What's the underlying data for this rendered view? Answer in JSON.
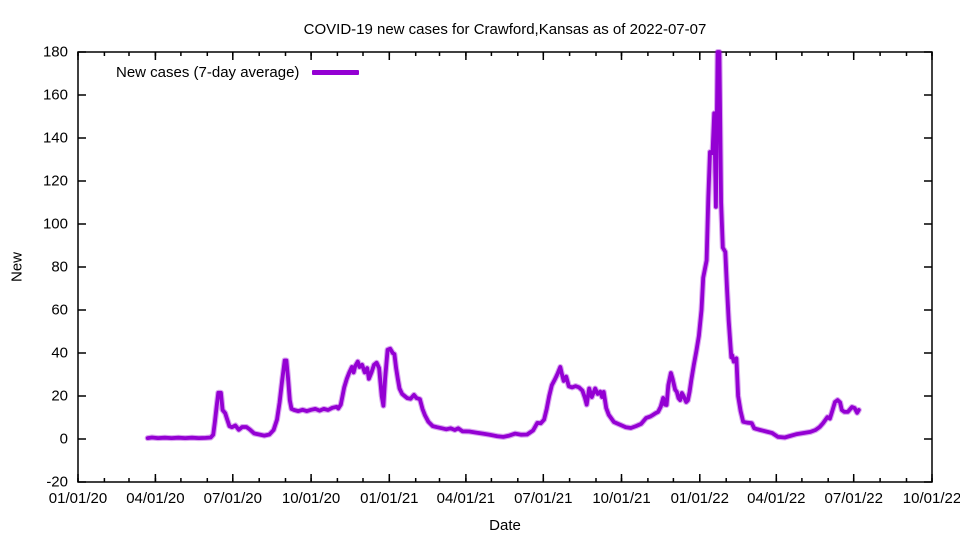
{
  "chart_data": {
    "type": "line",
    "title": "COVID-19 new cases for Crawford,Kansas as of 2022-07-07",
    "xlabel": "Date",
    "ylabel": "New",
    "grid": false,
    "legend": {
      "position": "top-left-inside",
      "entries": [
        "New cases (7-day average)"
      ]
    },
    "colors": {
      "line": "#9400d3",
      "frame": "#000000",
      "background": "#ffffff",
      "text": "#000000"
    },
    "x_axis": {
      "start_date": "2020-01-01",
      "end_date": "2022-10-01",
      "minor_ticks": "monthly",
      "ticks": [
        {
          "label": "01/01/20",
          "date": "2020-01-01"
        },
        {
          "label": "04/01/20",
          "date": "2020-04-01"
        },
        {
          "label": "07/01/20",
          "date": "2020-07-01"
        },
        {
          "label": "10/01/20",
          "date": "2020-10-01"
        },
        {
          "label": "01/01/21",
          "date": "2021-01-01"
        },
        {
          "label": "04/01/21",
          "date": "2021-04-01"
        },
        {
          "label": "07/01/21",
          "date": "2021-07-01"
        },
        {
          "label": "10/01/21",
          "date": "2021-10-01"
        },
        {
          "label": "01/01/22",
          "date": "2022-01-01"
        },
        {
          "label": "04/01/22",
          "date": "2022-04-01"
        },
        {
          "label": "07/01/22",
          "date": "2022-07-01"
        },
        {
          "label": "10/01/22",
          "date": "2022-10-01"
        }
      ]
    },
    "y_axis": {
      "min": -20,
      "max": 180,
      "tick_step": 20,
      "ticks": [
        -20,
        0,
        20,
        40,
        60,
        80,
        100,
        120,
        140,
        160,
        180
      ]
    },
    "series": [
      {
        "name": "New cases (7-day average)",
        "color": "#9400d3",
        "points": [
          [
            "2020-03-23",
            0.4
          ],
          [
            "2020-03-28",
            0.7
          ],
          [
            "2020-04-04",
            0.4
          ],
          [
            "2020-04-12",
            0.6
          ],
          [
            "2020-04-20",
            0.4
          ],
          [
            "2020-04-28",
            0.6
          ],
          [
            "2020-05-06",
            0.4
          ],
          [
            "2020-05-14",
            0.6
          ],
          [
            "2020-05-22",
            0.4
          ],
          [
            "2020-05-30",
            0.5
          ],
          [
            "2020-06-05",
            0.7
          ],
          [
            "2020-06-08",
            2
          ],
          [
            "2020-06-10",
            8
          ],
          [
            "2020-06-12",
            15
          ],
          [
            "2020-06-14",
            21.5
          ],
          [
            "2020-06-17",
            21.5
          ],
          [
            "2020-06-19",
            13.5
          ],
          [
            "2020-06-22",
            12
          ],
          [
            "2020-06-24",
            9.5
          ],
          [
            "2020-06-27",
            6
          ],
          [
            "2020-06-30",
            5.5
          ],
          [
            "2020-07-04",
            6.3
          ],
          [
            "2020-07-08",
            4.3
          ],
          [
            "2020-07-12",
            5.6
          ],
          [
            "2020-07-17",
            5.6
          ],
          [
            "2020-07-21",
            4.4
          ],
          [
            "2020-07-26",
            2.6
          ],
          [
            "2020-08-01",
            2.1
          ],
          [
            "2020-08-07",
            1.6
          ],
          [
            "2020-08-13",
            2.1
          ],
          [
            "2020-08-18",
            4.2
          ],
          [
            "2020-08-22",
            9
          ],
          [
            "2020-08-25",
            17
          ],
          [
            "2020-08-28",
            27
          ],
          [
            "2020-08-31",
            36.5
          ],
          [
            "2020-09-02",
            36.5
          ],
          [
            "2020-09-04",
            28
          ],
          [
            "2020-09-06",
            18
          ],
          [
            "2020-09-08",
            14
          ],
          [
            "2020-09-11",
            13.5
          ],
          [
            "2020-09-16",
            13
          ],
          [
            "2020-09-21",
            13.6
          ],
          [
            "2020-09-26",
            13
          ],
          [
            "2020-10-01",
            13.6
          ],
          [
            "2020-10-06",
            14
          ],
          [
            "2020-10-11",
            13.2
          ],
          [
            "2020-10-16",
            14
          ],
          [
            "2020-10-21",
            13.5
          ],
          [
            "2020-10-26",
            14.5
          ],
          [
            "2020-10-31",
            15
          ],
          [
            "2020-11-02",
            14.2
          ],
          [
            "2020-11-05",
            16
          ],
          [
            "2020-11-07",
            20
          ],
          [
            "2020-11-09",
            24
          ],
          [
            "2020-11-12",
            28
          ],
          [
            "2020-11-15",
            31
          ],
          [
            "2020-11-18",
            33.5
          ],
          [
            "2020-11-20",
            31
          ],
          [
            "2020-11-22",
            34
          ],
          [
            "2020-11-25",
            36
          ],
          [
            "2020-11-27",
            33.5
          ],
          [
            "2020-11-30",
            34.5
          ],
          [
            "2020-12-03",
            31
          ],
          [
            "2020-12-06",
            33
          ],
          [
            "2020-12-08",
            28
          ],
          [
            "2020-12-11",
            31
          ],
          [
            "2020-12-14",
            34.5
          ],
          [
            "2020-12-17",
            35.5
          ],
          [
            "2020-12-20",
            33
          ],
          [
            "2020-12-23",
            20
          ],
          [
            "2020-12-25",
            15.5
          ],
          [
            "2020-12-27",
            28
          ],
          [
            "2020-12-30",
            41.5
          ],
          [
            "2021-01-02",
            42
          ],
          [
            "2021-01-05",
            40
          ],
          [
            "2021-01-07",
            39.5
          ],
          [
            "2021-01-09",
            33
          ],
          [
            "2021-01-11",
            28
          ],
          [
            "2021-01-13",
            23.5
          ],
          [
            "2021-01-16",
            21
          ],
          [
            "2021-01-19",
            20
          ],
          [
            "2021-01-22",
            19
          ],
          [
            "2021-01-26",
            18.7
          ],
          [
            "2021-01-30",
            20.5
          ],
          [
            "2021-02-02",
            19
          ],
          [
            "2021-02-06",
            18.5
          ],
          [
            "2021-02-09",
            14
          ],
          [
            "2021-02-12",
            11
          ],
          [
            "2021-02-16",
            8
          ],
          [
            "2021-02-21",
            6
          ],
          [
            "2021-02-26",
            5.5
          ],
          [
            "2021-03-04",
            5
          ],
          [
            "2021-03-09",
            4.5
          ],
          [
            "2021-03-14",
            5
          ],
          [
            "2021-03-19",
            4.2
          ],
          [
            "2021-03-23",
            5
          ],
          [
            "2021-03-28",
            3.6
          ],
          [
            "2021-04-05",
            3.5
          ],
          [
            "2021-04-13",
            3
          ],
          [
            "2021-04-21",
            2.5
          ],
          [
            "2021-04-29",
            2
          ],
          [
            "2021-05-08",
            1.3
          ],
          [
            "2021-05-15",
            1
          ],
          [
            "2021-05-22",
            1.6
          ],
          [
            "2021-05-29",
            2.5
          ],
          [
            "2021-06-05",
            2
          ],
          [
            "2021-06-12",
            2.1
          ],
          [
            "2021-06-19",
            4
          ],
          [
            "2021-06-24",
            7.5
          ],
          [
            "2021-06-28",
            7.3
          ],
          [
            "2021-07-02",
            9
          ],
          [
            "2021-07-05",
            14
          ],
          [
            "2021-07-08",
            20
          ],
          [
            "2021-07-11",
            25
          ],
          [
            "2021-07-15",
            28
          ],
          [
            "2021-07-18",
            30.5
          ],
          [
            "2021-07-21",
            33.5
          ],
          [
            "2021-07-23",
            30
          ],
          [
            "2021-07-25",
            27
          ],
          [
            "2021-07-28",
            29
          ],
          [
            "2021-07-31",
            24.5
          ],
          [
            "2021-08-04",
            24
          ],
          [
            "2021-08-08",
            24.6
          ],
          [
            "2021-08-12",
            24
          ],
          [
            "2021-08-16",
            22.5
          ],
          [
            "2021-08-19",
            19
          ],
          [
            "2021-08-21",
            16
          ],
          [
            "2021-08-24",
            23.5
          ],
          [
            "2021-08-27",
            19.5
          ],
          [
            "2021-08-31",
            23.5
          ],
          [
            "2021-09-03",
            21
          ],
          [
            "2021-09-06",
            22
          ],
          [
            "2021-09-08",
            19.5
          ],
          [
            "2021-09-10",
            21.9
          ],
          [
            "2021-09-13",
            14.4
          ],
          [
            "2021-09-16",
            11.2
          ],
          [
            "2021-09-22",
            7.9
          ],
          [
            "2021-09-27",
            7
          ],
          [
            "2021-09-30",
            6.5
          ],
          [
            "2021-10-06",
            5.5
          ],
          [
            "2021-10-12",
            5.1
          ],
          [
            "2021-10-18",
            6
          ],
          [
            "2021-10-24",
            7
          ],
          [
            "2021-10-30",
            9.8
          ],
          [
            "2021-11-04",
            10.5
          ],
          [
            "2021-11-07",
            11.2
          ],
          [
            "2021-11-10",
            12
          ],
          [
            "2021-11-13",
            12.6
          ],
          [
            "2021-11-16",
            15
          ],
          [
            "2021-11-19",
            19.1
          ],
          [
            "2021-11-21",
            16
          ],
          [
            "2021-11-23",
            15.8
          ],
          [
            "2021-11-25",
            25
          ],
          [
            "2021-11-28",
            30.7
          ],
          [
            "2021-11-30",
            28
          ],
          [
            "2021-12-03",
            23
          ],
          [
            "2021-12-05",
            21.9
          ],
          [
            "2021-12-07",
            19
          ],
          [
            "2021-12-09",
            18.1
          ],
          [
            "2021-12-11",
            21.4
          ],
          [
            "2021-12-13",
            20
          ],
          [
            "2021-12-16",
            17.2
          ],
          [
            "2021-12-18",
            18
          ],
          [
            "2021-12-20",
            22
          ],
          [
            "2021-12-22",
            27.4
          ],
          [
            "2021-12-25",
            34.4
          ],
          [
            "2021-12-28",
            41
          ],
          [
            "2021-12-31",
            48
          ],
          [
            "2022-01-03",
            60
          ],
          [
            "2022-01-05",
            75
          ],
          [
            "2022-01-07",
            79
          ],
          [
            "2022-01-09",
            83
          ],
          [
            "2022-01-11",
            112
          ],
          [
            "2022-01-13",
            133.5
          ],
          [
            "2022-01-16",
            133
          ],
          [
            "2022-01-18",
            151.5
          ],
          [
            "2022-01-20",
            108
          ],
          [
            "2022-01-22",
            180
          ],
          [
            "2022-01-24",
            180
          ],
          [
            "2022-01-26",
            110
          ],
          [
            "2022-01-28",
            89
          ],
          [
            "2022-01-31",
            87
          ],
          [
            "2022-02-02",
            70
          ],
          [
            "2022-02-04",
            55
          ],
          [
            "2022-02-07",
            38
          ],
          [
            "2022-02-08",
            39
          ],
          [
            "2022-02-10",
            36
          ],
          [
            "2022-02-13",
            37.5
          ],
          [
            "2022-02-15",
            20
          ],
          [
            "2022-02-18",
            13
          ],
          [
            "2022-02-21",
            8
          ],
          [
            "2022-02-26",
            7.6
          ],
          [
            "2022-03-03",
            7.4
          ],
          [
            "2022-03-06",
            5
          ],
          [
            "2022-03-09",
            4.6
          ],
          [
            "2022-03-13",
            4.2
          ],
          [
            "2022-03-20",
            3.5
          ],
          [
            "2022-03-27",
            2.8
          ],
          [
            "2022-04-03",
            1
          ],
          [
            "2022-04-11",
            0.7
          ],
          [
            "2022-04-17",
            1.4
          ],
          [
            "2022-04-25",
            2.3
          ],
          [
            "2022-05-03",
            2.8
          ],
          [
            "2022-05-11",
            3.3
          ],
          [
            "2022-05-17",
            4.2
          ],
          [
            "2022-05-22",
            5.6
          ],
          [
            "2022-05-26",
            7.4
          ],
          [
            "2022-05-31",
            10.2
          ],
          [
            "2022-06-03",
            9.5
          ],
          [
            "2022-06-05",
            12
          ],
          [
            "2022-06-09",
            17.2
          ],
          [
            "2022-06-12",
            18.1
          ],
          [
            "2022-06-15",
            17
          ],
          [
            "2022-06-17",
            13.5
          ],
          [
            "2022-06-20",
            12.6
          ],
          [
            "2022-06-24",
            12.6
          ],
          [
            "2022-06-29",
            14.9
          ],
          [
            "2022-07-02",
            14.4
          ],
          [
            "2022-07-05",
            12.2
          ],
          [
            "2022-07-07",
            13.5
          ]
        ]
      }
    ]
  }
}
